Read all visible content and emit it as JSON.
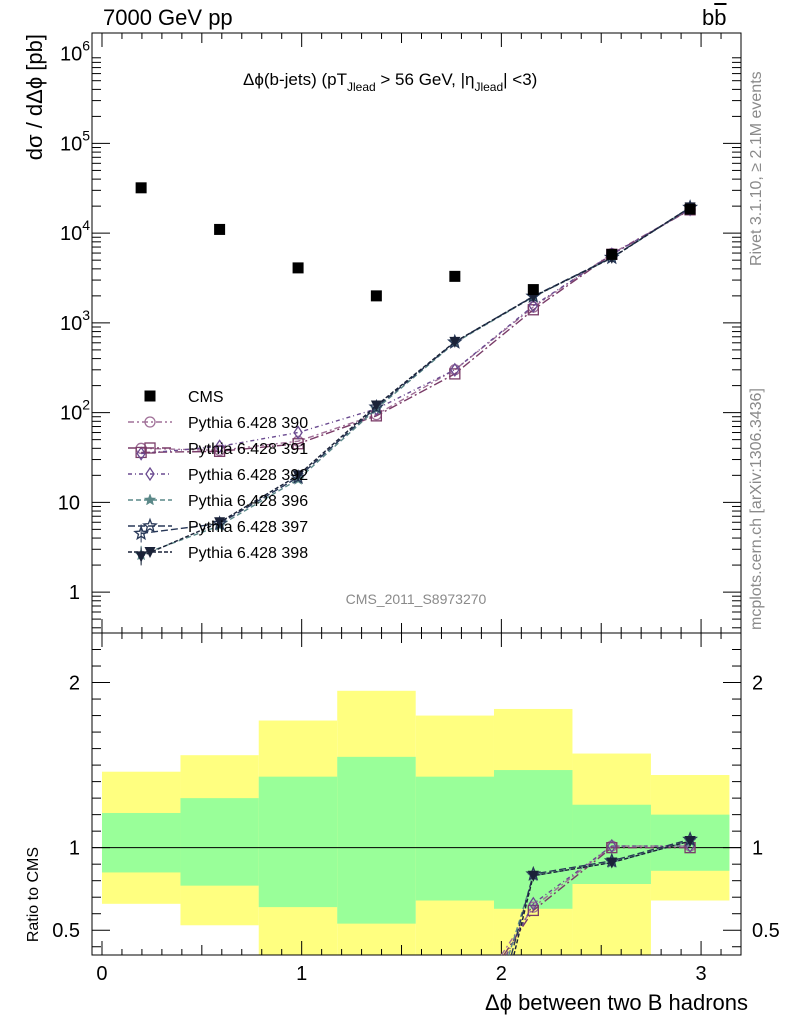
{
  "header": {
    "left": "7000 GeV pp",
    "right_main": "b",
    "right_bar": "b"
  },
  "side_labels": {
    "rivet": "Rivet 3.1.10, ≥ 2.1M events",
    "mcplots": "mcplots.cern.ch [arXiv:1306.3436]"
  },
  "chart_data": [
    {
      "type": "scatter",
      "title": {
        "delta_phi": "Δϕ(b-jets) (pT",
        "sub1": "Jlead",
        "mid": " >  56 GeV, |η",
        "sub2": "Jlead",
        "end": "| <3)"
      },
      "ylabel": "dσ / dΔϕ [pb]",
      "yscale": "log",
      "ylim": [
        0.35,
        1700000
      ],
      "xlim": [
        -0.05,
        3.2
      ],
      "y_ticks": [
        {
          "v": 1,
          "label": "1"
        },
        {
          "v": 10,
          "label": "10"
        },
        {
          "v": 100,
          "label": "10",
          "exp": "2"
        },
        {
          "v": 1000,
          "label": "10",
          "exp": "3"
        },
        {
          "v": 10000,
          "label": "10",
          "exp": "4"
        },
        {
          "v": 100000,
          "label": "10",
          "exp": "5"
        },
        {
          "v": 1000000,
          "label": "10",
          "exp": "6"
        }
      ],
      "watermark": "CMS_2011_S8973270",
      "x": [
        0.196,
        0.589,
        0.982,
        1.374,
        1.767,
        2.16,
        2.553,
        2.945
      ],
      "reference": {
        "name": "CMS",
        "values": [
          32000,
          11000,
          4100,
          2000,
          3300,
          2350,
          5800,
          18500
        ]
      },
      "series": [
        {
          "name": "Pythia 6.428 390",
          "color": "#a07098",
          "marker": "circle-open",
          "dash": "6,3,2,3",
          "values": [
            40,
            38,
            48,
            95,
            300,
            1500,
            5900,
            18300
          ]
        },
        {
          "name": "Pythia 6.428 391",
          "color": "#7a3c68",
          "marker": "square-open",
          "dash": "9,3,2,3",
          "values": [
            36,
            37,
            45,
            92,
            270,
            1400,
            5800,
            18200
          ]
        },
        {
          "name": "Pythia 6.428 392",
          "color": "#6a4a90",
          "marker": "diamond-open",
          "dash": "4,3,1,3",
          "values": [
            35,
            42,
            60,
            110,
            300,
            1550,
            5800,
            18400
          ]
        },
        {
          "name": "Pythia 6.428 396",
          "color": "#5a8888",
          "marker": "star",
          "dash": "5,3",
          "values": [
            2.6,
            5.5,
            18,
            110,
            600,
            1950,
            5300,
            19200
          ]
        },
        {
          "name": "Pythia 6.428 397",
          "color": "#283858",
          "marker": "star-open",
          "dash": "7,3",
          "values": [
            4.5,
            5.8,
            19,
            115,
            610,
            1980,
            5350,
            19300
          ]
        },
        {
          "name": "Pythia 6.428 398",
          "color": "#1a2238",
          "marker": "triangle-down",
          "dash": "4,2",
          "values": [
            2.5,
            6.0,
            20,
            120,
            615,
            1960,
            5300,
            19400
          ]
        }
      ]
    },
    {
      "type": "scatter",
      "ylabel": "Ratio to CMS",
      "xlabel": "Δϕ between two B hadrons",
      "ylim": [
        0.35,
        2.3
      ],
      "xlim": [
        -0.05,
        3.2
      ],
      "x_ticks": [
        {
          "v": 0,
          "label": "0"
        },
        {
          "v": 1,
          "label": "1"
        },
        {
          "v": 2,
          "label": "2"
        },
        {
          "v": 3,
          "label": "3"
        }
      ],
      "y_ticks": [
        {
          "v": 0.5,
          "label": "0.5"
        },
        {
          "v": 1,
          "label": "1"
        },
        {
          "v": 2,
          "label": "2"
        }
      ],
      "bin_edges": [
        0,
        0.393,
        0.785,
        1.178,
        1.571,
        1.963,
        2.356,
        2.749,
        3.142
      ],
      "bands": {
        "outer": [
          [
            0.66,
            1.46
          ],
          [
            0.53,
            1.56
          ],
          [
            0.35,
            1.77
          ],
          [
            0.35,
            1.95
          ],
          [
            0.35,
            1.8
          ],
          [
            0.35,
            1.84
          ],
          [
            0.35,
            1.57
          ],
          [
            0.68,
            1.44
          ]
        ],
        "inner": [
          [
            0.85,
            1.21
          ],
          [
            0.77,
            1.3
          ],
          [
            0.64,
            1.43
          ],
          [
            0.54,
            1.55
          ],
          [
            0.68,
            1.43
          ],
          [
            0.63,
            1.47
          ],
          [
            0.78,
            1.26
          ],
          [
            0.86,
            1.2
          ]
        ]
      },
      "series": [
        {
          "name": "Pythia 6.428 390",
          "values": [
            null,
            null,
            null,
            null,
            null,
            0.64,
            1.01,
            1.01
          ]
        },
        {
          "name": "Pythia 6.428 391",
          "values": [
            null,
            null,
            null,
            null,
            null,
            0.62,
            1.0,
            1.0
          ]
        },
        {
          "name": "Pythia 6.428 392",
          "values": [
            null,
            null,
            null,
            null,
            null,
            0.66,
            1.01,
            1.01
          ]
        },
        {
          "name": "Pythia 6.428 396",
          "values": [
            null,
            null,
            null,
            null,
            null,
            0.83,
            0.91,
            1.04
          ]
        },
        {
          "name": "Pythia 6.428 397",
          "values": [
            null,
            null,
            null,
            null,
            null,
            0.84,
            0.92,
            1.05
          ]
        },
        {
          "name": "Pythia 6.428 398",
          "values": [
            null,
            null,
            null,
            null,
            null,
            0.83,
            0.91,
            1.04
          ]
        }
      ],
      "offscale_low": [
        {
          "x0": 2.0,
          "x1": 2.16
        }
      ]
    }
  ]
}
